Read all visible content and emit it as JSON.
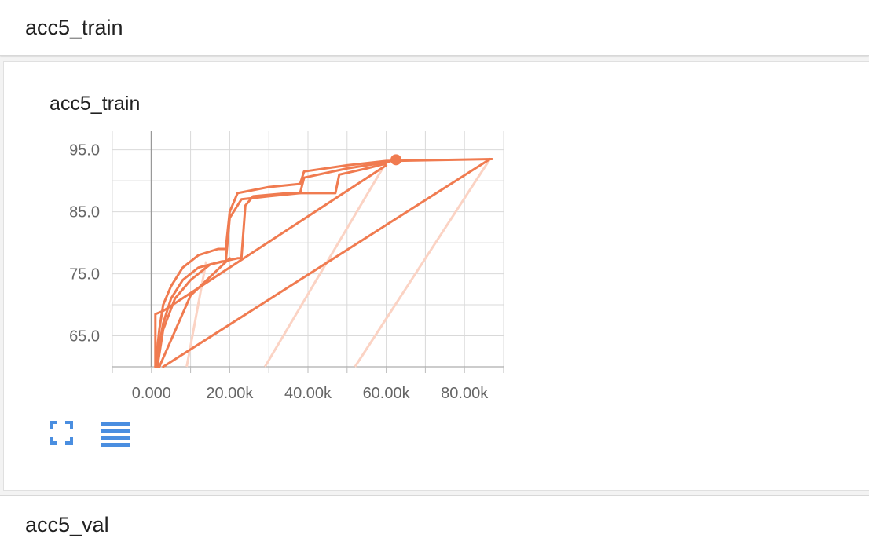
{
  "sections": {
    "top_title": "acc5_train",
    "card_title": "acc5_train",
    "bottom_title": "acc5_val"
  },
  "icons": {
    "fullscreen": "fullscreen-icon",
    "lines": "toggle-lines-icon"
  },
  "colors": {
    "series": "#f07b50",
    "series_faint": "#fbd3c4",
    "grid": "#d9d9d9",
    "accent": "#4a8ee0"
  },
  "chart_data": {
    "type": "line",
    "title": "",
    "xlabel": "",
    "ylabel": "",
    "xlim": [
      -10000,
      90000
    ],
    "ylim": [
      60,
      98
    ],
    "x_ticks": [
      "0.000",
      "20.00k",
      "40.00k",
      "60.00k",
      "80.00k"
    ],
    "x_tick_values": [
      0,
      20000,
      40000,
      60000,
      80000
    ],
    "y_ticks": [
      "65.0",
      "75.0",
      "85.0",
      "95.0"
    ],
    "y_tick_values": [
      65,
      75,
      85,
      95
    ],
    "grid": true,
    "series": [
      {
        "points": [
          [
            1000,
            60
          ],
          [
            2000,
            66
          ],
          [
            3000,
            70
          ],
          [
            5000,
            73
          ],
          [
            8000,
            76
          ],
          [
            12000,
            78
          ],
          [
            17000,
            79
          ],
          [
            19000,
            79
          ],
          [
            20000,
            85
          ],
          [
            22000,
            88
          ],
          [
            30000,
            89
          ],
          [
            38000,
            89.5
          ],
          [
            39000,
            91.5
          ],
          [
            50000,
            92.5
          ],
          [
            60000,
            93.2
          ],
          [
            87000,
            93.5
          ]
        ]
      },
      {
        "points": [
          [
            1000,
            60
          ],
          [
            3000,
            67
          ],
          [
            5000,
            71
          ],
          [
            8000,
            74
          ],
          [
            12000,
            76
          ],
          [
            18000,
            77
          ],
          [
            19000,
            77
          ],
          [
            20000,
            84
          ],
          [
            23000,
            87
          ],
          [
            30000,
            87.5
          ],
          [
            38000,
            88
          ],
          [
            39000,
            90.5
          ],
          [
            50000,
            92
          ],
          [
            60000,
            93
          ],
          [
            62500,
            93.4
          ]
        ]
      },
      {
        "points": [
          [
            1500,
            60
          ],
          [
            3000,
            66
          ],
          [
            6000,
            71
          ],
          [
            10000,
            74
          ],
          [
            15000,
            76.5
          ],
          [
            22000,
            77.5
          ],
          [
            23000,
            77.5
          ],
          [
            24000,
            86
          ],
          [
            26000,
            87.5
          ],
          [
            35000,
            88
          ],
          [
            47000,
            88
          ],
          [
            48000,
            91
          ],
          [
            55000,
            92
          ],
          [
            60000,
            92.8
          ]
        ]
      },
      {
        "points": [
          [
            1000,
            60
          ],
          [
            1000,
            68.5
          ],
          [
            3000,
            69
          ],
          [
            60000,
            92.5
          ]
        ]
      },
      {
        "points": [
          [
            3000,
            60
          ],
          [
            86500,
            93.5
          ]
        ]
      },
      {
        "points": [
          [
            2000,
            60
          ],
          [
            10000,
            71.5
          ],
          [
            20000,
            77.5
          ]
        ]
      }
    ],
    "faint_series": [
      {
        "points": [
          [
            9000,
            60
          ],
          [
            14000,
            77
          ]
        ]
      },
      {
        "points": [
          [
            29000,
            60
          ],
          [
            60000,
            93
          ]
        ]
      },
      {
        "points": [
          [
            52000,
            60
          ],
          [
            86500,
            93.5
          ]
        ]
      }
    ],
    "marker": {
      "x": 62500,
      "y": 93.4
    }
  }
}
